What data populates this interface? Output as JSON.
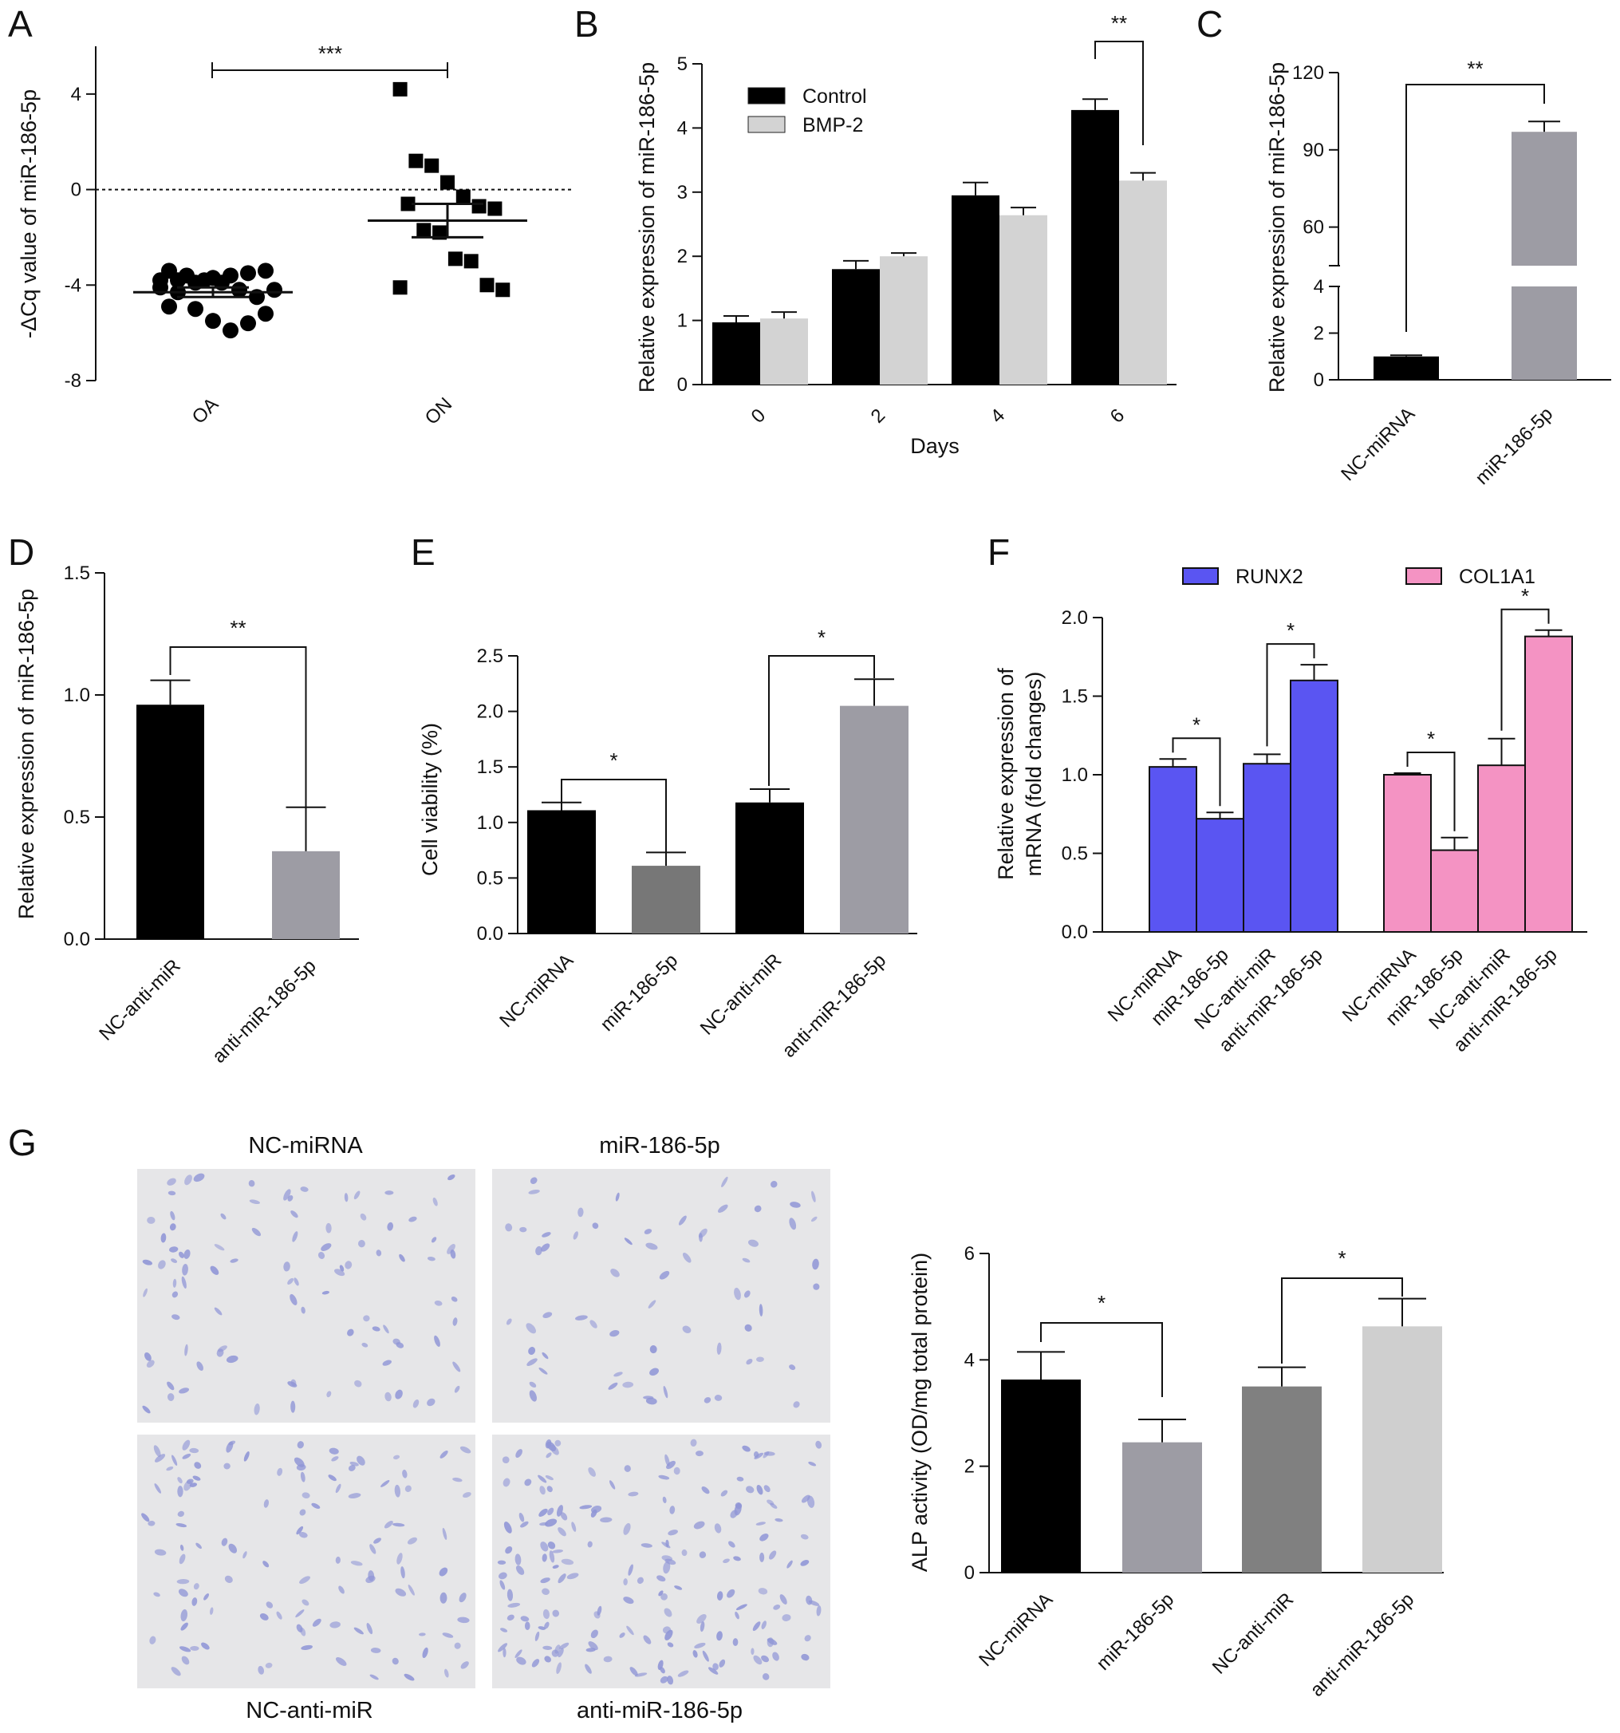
{
  "colors": {
    "black": "#000000",
    "light_grey": "#d3d3d3",
    "mid_grey": "#9d9ca4",
    "dark_grey": "#777777",
    "grey_808": "#808080",
    "very_light_grey": "#cfcfcf",
    "runx2_blue": "#5a55f2",
    "col1a1_pink": "#f493c3",
    "micrograph_bg": "#e6e6e8",
    "nucleus": "#8f95d6"
  },
  "chart_data": [
    {
      "id": "A",
      "type": "scatter",
      "letter": "A",
      "ylabel": "-ΔCq value of miR-186-5p",
      "xlabel": "",
      "ylim": [
        -8,
        6
      ],
      "yticks": [
        4,
        0,
        -4,
        -8
      ],
      "ytick_labels": [
        "4",
        "0",
        "-4",
        "-8"
      ],
      "reference_line_y": 0,
      "categories": [
        "OA",
        "ON"
      ],
      "groups": [
        {
          "category": "OA",
          "marker": "circle",
          "mean": -4.3,
          "sem": 0.2,
          "values": [
            -3.8,
            -3.8,
            -3.9,
            -3.7,
            -3.6,
            -3.5,
            -3.4,
            -3.4,
            -3.6,
            -3.8,
            -3.9,
            -4.2,
            -4.5,
            -4.2,
            -4.1,
            -4.3,
            -5.0,
            -5.5,
            -5.9,
            -5.6,
            -5.2,
            -4.9
          ]
        },
        {
          "category": "ON",
          "marker": "square",
          "mean": -1.3,
          "sem": 0.7,
          "values": [
            4.2,
            1.2,
            1.0,
            0.3,
            -0.3,
            -0.7,
            -0.8,
            -0.6,
            -1.7,
            -1.8,
            -2.9,
            -3.0,
            -4.0,
            -4.2,
            -4.1
          ]
        }
      ],
      "significance": [
        {
          "from": 0,
          "to": 1,
          "label": "***"
        }
      ]
    },
    {
      "id": "B",
      "type": "bar",
      "letter": "B",
      "ylabel": "Relative expression of miR-186-5p",
      "xlabel": "Days",
      "ylim": [
        0,
        5
      ],
      "yticks": [
        0,
        1,
        2,
        3,
        4,
        5
      ],
      "categories": [
        "0",
        "2",
        "4",
        "6"
      ],
      "series": [
        {
          "name": "Control",
          "color": "#000000",
          "values": [
            0.97,
            1.8,
            2.95,
            4.28
          ],
          "errors": [
            0.1,
            0.13,
            0.2,
            0.17
          ]
        },
        {
          "name": "BMP-2",
          "color": "#d3d3d3",
          "values": [
            1.03,
            2.0,
            2.64,
            3.18
          ],
          "errors": [
            0.1,
            0.05,
            0.12,
            0.12
          ]
        }
      ],
      "legend": "top-left",
      "significance": [
        {
          "category": 3,
          "label": "**"
        }
      ]
    },
    {
      "id": "C",
      "type": "bar",
      "letter": "C",
      "ylabel": "Relative expression of miR-186-5p",
      "xlabel": "",
      "broken_axis": true,
      "ylim_lower": [
        0,
        4
      ],
      "ylim_upper": [
        45,
        120
      ],
      "yticks_lower": [
        0,
        2,
        4
      ],
      "yticks_upper": [
        60,
        90,
        120
      ],
      "categories": [
        "NC-miRNA",
        "miR-186-5p"
      ],
      "values": [
        1.0,
        97.0
      ],
      "errors": [
        0.05,
        4.0
      ],
      "colors": [
        "#000000",
        "#9d9ca4"
      ],
      "significance": [
        {
          "from": 0,
          "to": 1,
          "label": "**"
        }
      ]
    },
    {
      "id": "D",
      "type": "bar",
      "letter": "D",
      "ylabel": "Relative expression of miR-186-5p",
      "xlabel": "",
      "ylim": [
        0,
        1.5
      ],
      "yticks": [
        0.0,
        0.5,
        1.0,
        1.5
      ],
      "ytick_labels": [
        "0.0",
        "0.5",
        "1.0",
        "1.5"
      ],
      "categories": [
        "NC-anti-miR",
        "anti-miR-186-5p"
      ],
      "values": [
        0.96,
        0.36
      ],
      "errors": [
        0.1,
        0.18
      ],
      "colors": [
        "#000000",
        "#9d9ca4"
      ],
      "significance": [
        {
          "from": 0,
          "to": 1,
          "label": "**"
        }
      ]
    },
    {
      "id": "E",
      "type": "bar",
      "letter": "E",
      "ylabel": "Cell viability (%)",
      "xlabel": "",
      "ylim": [
        0,
        2.5
      ],
      "yticks": [
        0.0,
        0.5,
        1.0,
        1.5,
        2.0,
        2.5
      ],
      "ytick_labels": [
        "0.0",
        "0.5",
        "1.0",
        "1.5",
        "2.0",
        "2.5"
      ],
      "categories": [
        "NC-miRNA",
        "miR-186-5p",
        "NC-anti-miR",
        "anti-miR-186-5p"
      ],
      "values": [
        1.11,
        0.61,
        1.18,
        2.05
      ],
      "errors": [
        0.07,
        0.12,
        0.12,
        0.24
      ],
      "colors": [
        "#000000",
        "#777777",
        "#000000",
        "#9d9ca4"
      ],
      "significance": [
        {
          "from": 0,
          "to": 1,
          "label": "*"
        },
        {
          "from": 2,
          "to": 3,
          "label": "*"
        }
      ]
    },
    {
      "id": "F",
      "type": "bar",
      "letter": "F",
      "ylabel": "Relative expression of",
      "ylabel2": "mRNA (fold changes)",
      "xlabel": "",
      "ylim": [
        0,
        2.0
      ],
      "yticks": [
        0.0,
        0.5,
        1.0,
        1.5,
        2.0
      ],
      "ytick_labels": [
        "0.0",
        "0.5",
        "1.0",
        "1.5",
        "2.0"
      ],
      "categories": [
        "NC-miRNA",
        "miR-186-5p",
        "NC-anti-miR",
        "anti-miR-186-5p"
      ],
      "series": [
        {
          "name": "RUNX2",
          "color": "#5a55f2",
          "values": [
            1.05,
            0.72,
            1.07,
            1.6
          ],
          "errors": [
            0.05,
            0.04,
            0.06,
            0.1
          ]
        },
        {
          "name": "COL1A1",
          "color": "#f493c3",
          "values": [
            1.0,
            0.52,
            1.06,
            1.88
          ],
          "errors": [
            0.01,
            0.08,
            0.17,
            0.04
          ]
        }
      ],
      "legend": "top",
      "significance": [
        {
          "series": 0,
          "from": 0,
          "to": 1,
          "label": "*"
        },
        {
          "series": 0,
          "from": 2,
          "to": 3,
          "label": "*"
        },
        {
          "series": 1,
          "from": 0,
          "to": 1,
          "label": "*"
        },
        {
          "series": 1,
          "from": 2,
          "to": 3,
          "label": "*"
        }
      ]
    },
    {
      "id": "G",
      "type": "bar",
      "letter": "",
      "ylabel": "ALP activity (OD/mg total protein)",
      "xlabel": "",
      "ylim": [
        0,
        6
      ],
      "yticks": [
        0,
        2,
        4,
        6
      ],
      "categories": [
        "NC-miRNA",
        "miR-186-5p",
        "NC-anti-miR",
        "anti-miR-186-5p"
      ],
      "values": [
        3.63,
        2.45,
        3.5,
        4.63
      ],
      "errors": [
        0.52,
        0.43,
        0.36,
        0.52
      ],
      "colors": [
        "#000000",
        "#9d9ca4",
        "#808080",
        "#cfcfcf"
      ],
      "significance": [
        {
          "from": 0,
          "to": 1,
          "label": "*"
        },
        {
          "from": 2,
          "to": 3,
          "label": "*"
        }
      ]
    }
  ],
  "panel_g": {
    "letter": "G",
    "images": [
      {
        "name": "nc-mirna-micrograph",
        "label": "NC-miRNA",
        "density": 95
      },
      {
        "name": "mir-186-5p-micrograph",
        "label": "miR-186-5p",
        "density": 65
      },
      {
        "name": "nc-anti-mir-micrograph",
        "label": "NC-anti-miR",
        "density": 120
      },
      {
        "name": "anti-mir-186-5p-micrograph",
        "label": "anti-miR-186-5p",
        "density": 185
      }
    ]
  }
}
